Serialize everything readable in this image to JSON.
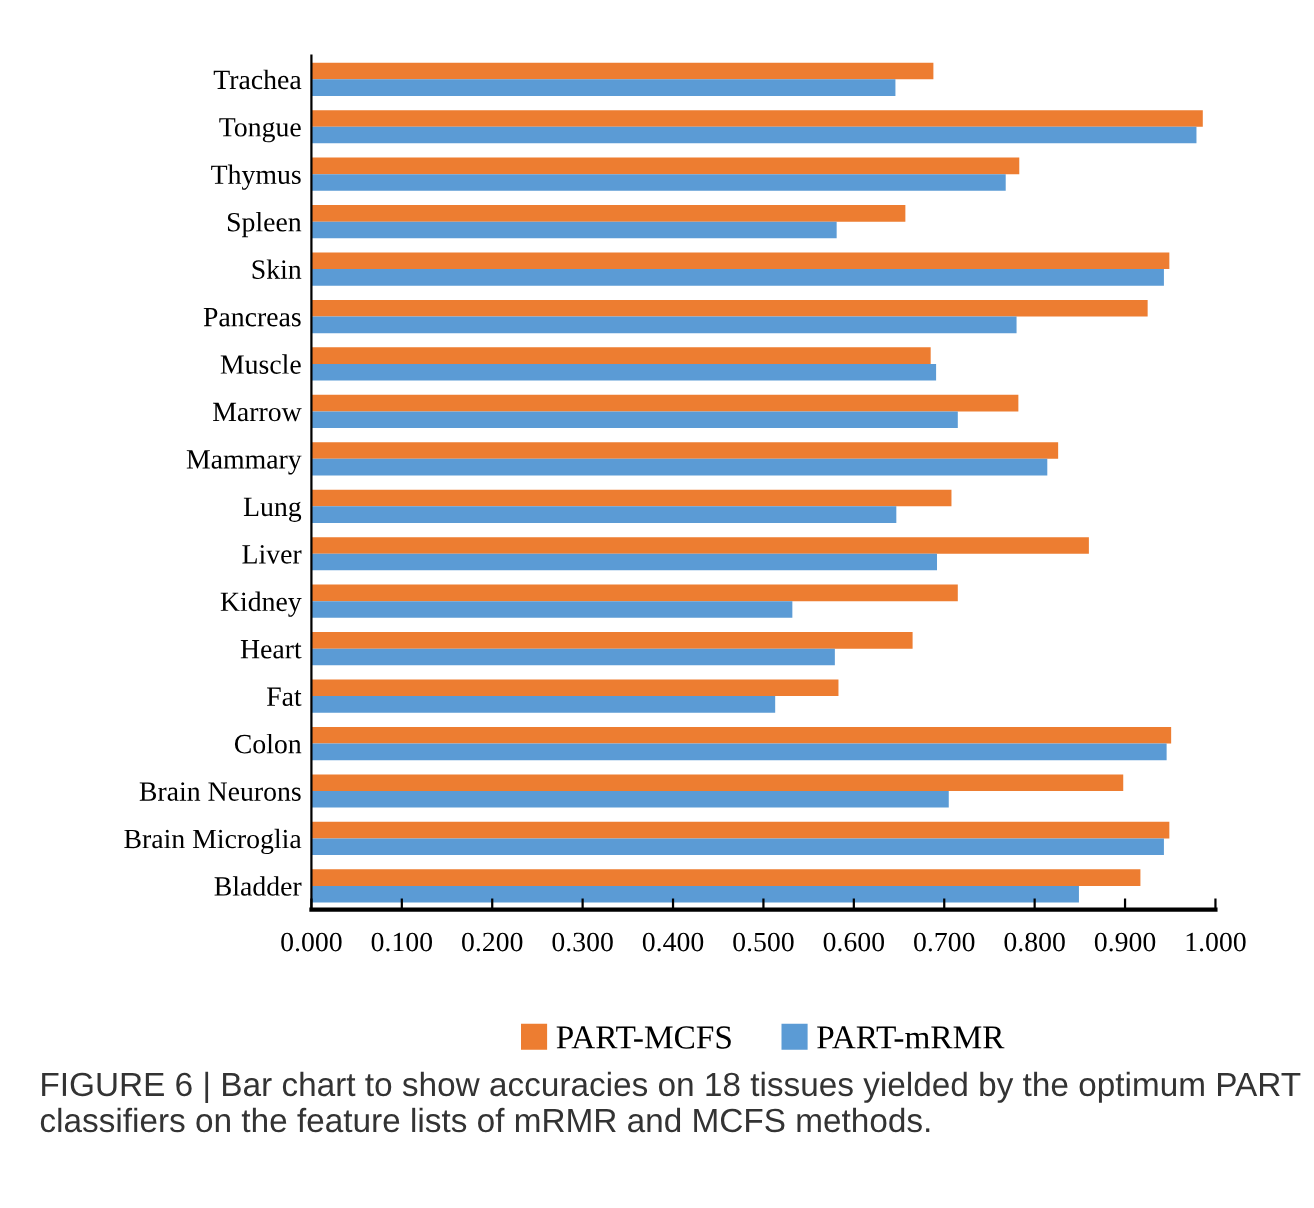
{
  "chart_data": {
    "type": "bar",
    "orientation": "horizontal",
    "categories": [
      "Trachea",
      "Tongue",
      "Thymus",
      "Spleen",
      "Skin",
      "Pancreas",
      "Muscle",
      "Marrow",
      "Mammary",
      "Lung",
      "Liver",
      "Kidney",
      "Heart",
      "Fat",
      "Colon",
      "Brain Neurons",
      "Brain Microglia",
      "Bladder"
    ],
    "series": [
      {
        "name": "PART-MCFS",
        "color": "#ed7d31",
        "values": [
          0.688,
          0.986,
          0.783,
          0.657,
          0.949,
          0.925,
          0.685,
          0.782,
          0.826,
          0.708,
          0.86,
          0.715,
          0.665,
          0.583,
          0.951,
          0.898,
          0.949,
          0.917
        ]
      },
      {
        "name": "PART-mRMR",
        "color": "#5b9bd5",
        "values": [
          0.646,
          0.979,
          0.768,
          0.581,
          0.943,
          0.78,
          0.691,
          0.715,
          0.814,
          0.647,
          0.692,
          0.532,
          0.579,
          0.513,
          0.946,
          0.705,
          0.943,
          0.849
        ]
      }
    ],
    "xlim": [
      0,
      1
    ],
    "xticks": [
      {
        "value": 0,
        "label": "0.000"
      },
      {
        "value": 0.1,
        "label": "0.100"
      },
      {
        "value": 0.2,
        "label": "0.200"
      },
      {
        "value": 0.3,
        "label": "0.300"
      },
      {
        "value": 0.4,
        "label": "0.400"
      },
      {
        "value": 0.5,
        "label": "0.500"
      },
      {
        "value": 0.6,
        "label": "0.600"
      },
      {
        "value": 0.7,
        "label": "0.700"
      },
      {
        "value": 0.8,
        "label": "0.800"
      },
      {
        "value": 0.9,
        "label": "0.900"
      },
      {
        "value": 1,
        "label": "1.000"
      }
    ],
    "grid": false,
    "legend": "bottom",
    "annotations": [
      "FIGURE 6 | Bar chart to show accuracies on 18 tissues yielded by the optimum PART classifiers on the feature lists of mRMR and MCFS methods."
    ]
  }
}
